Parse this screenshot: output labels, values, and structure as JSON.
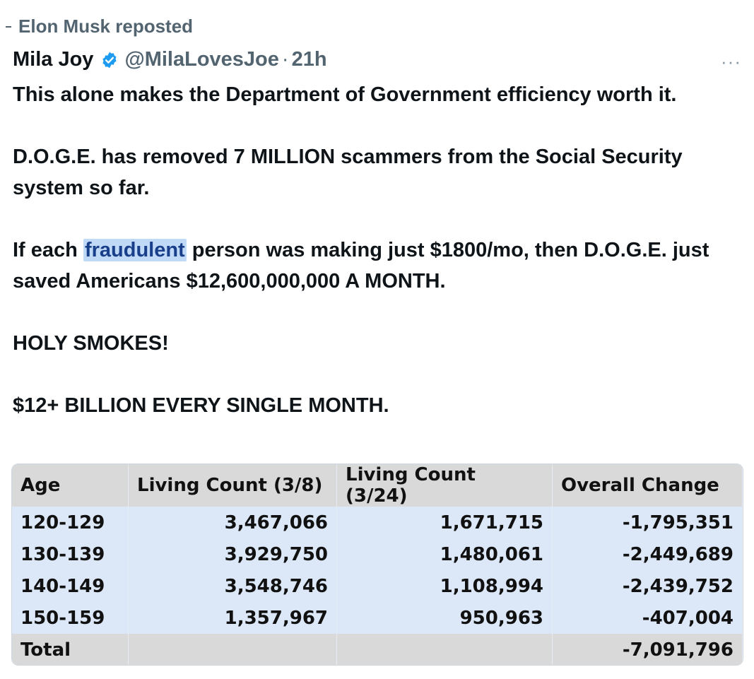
{
  "repost": {
    "label": "Elon Musk reposted"
  },
  "author": {
    "name": "Mila Joy",
    "handle": "@MilaLovesJoe",
    "separator": "·",
    "time": "21h"
  },
  "more": {
    "label": "···"
  },
  "tweet": {
    "line1": "This alone makes the Department of Government efficiency worth it.",
    "line2": "D.O.G.E. has removed 7 MILLION scammers from the Social Security system so far.",
    "line3_before": "If each ",
    "line3_highlight": "fraudulent",
    "line3_after": " person was making just $1800/mo, then D.O.G.E. just saved Americans $12,600,000,000 A MONTH.",
    "line4": "HOLY SMOKES!",
    "line5": "$12+ BILLION EVERY SINGLE MONTH."
  },
  "table": {
    "headers": [
      "Age",
      "Living Count (3/8)",
      "Living Count (3/24)",
      "Overall Change"
    ],
    "rows": [
      [
        "120-129",
        "3,467,066",
        "1,671,715",
        "-1,795,351"
      ],
      [
        "130-139",
        "3,929,750",
        "1,480,061",
        "-2,449,689"
      ],
      [
        "140-149",
        "3,548,746",
        "1,108,994",
        "-2,439,752"
      ],
      [
        "150-159",
        "1,357,967",
        "950,963",
        "-407,004"
      ]
    ],
    "total": {
      "label": "Total",
      "value": "-7,091,796"
    }
  },
  "colors": {
    "verified": "#1d9bf0",
    "highlight": "#bfd9f7",
    "row": "#dce8f7",
    "header": "#d9d9d9"
  }
}
